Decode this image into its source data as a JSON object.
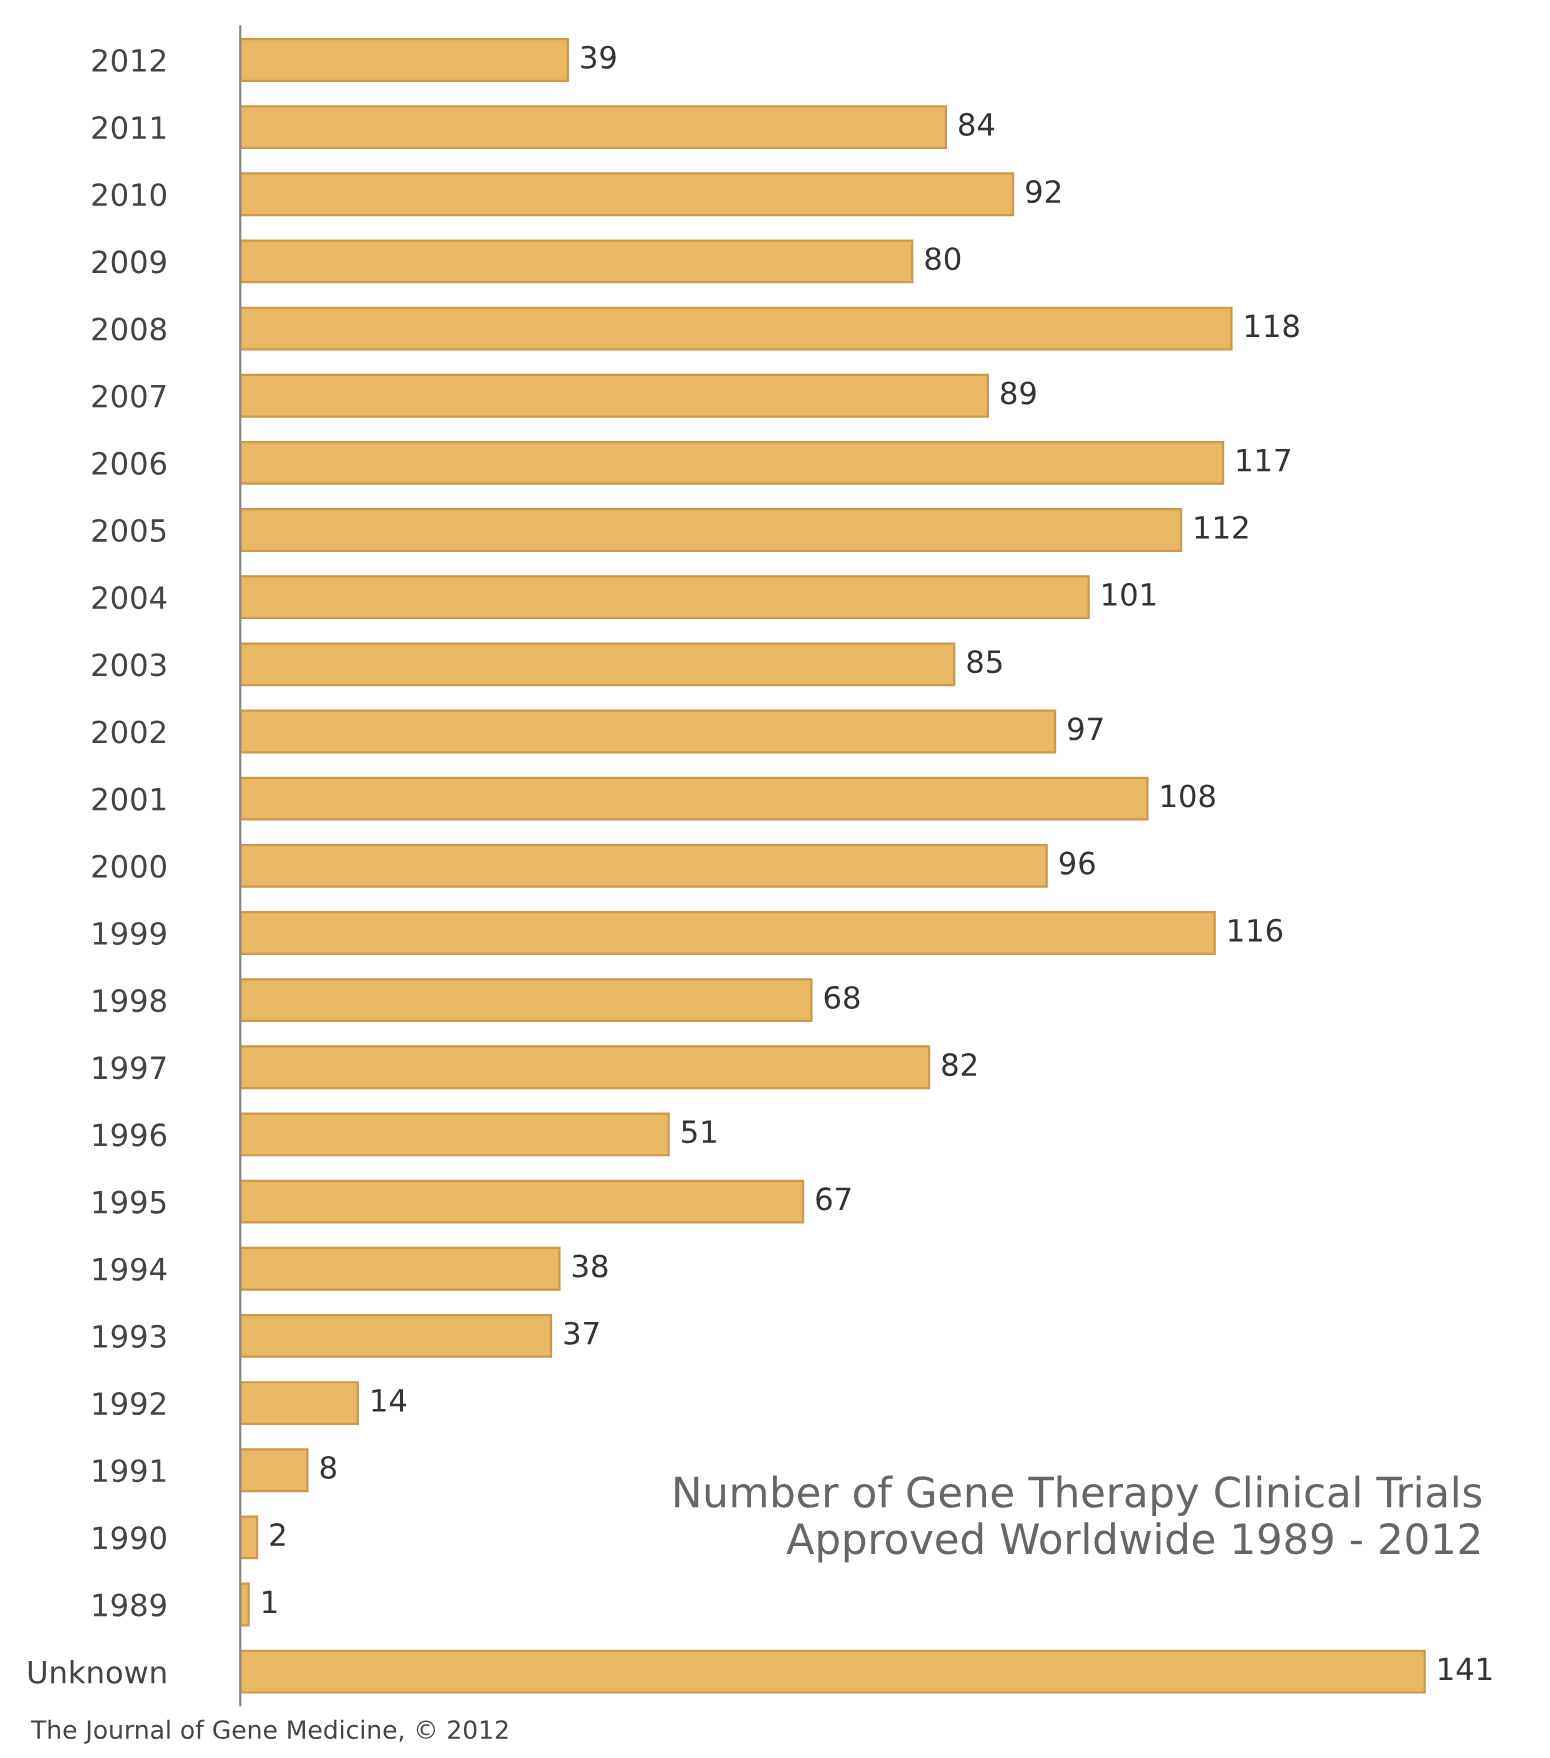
{
  "chart_data": {
    "type": "bar",
    "orientation": "horizontal",
    "title": "Number of Gene Therapy Clinical Trials\nApproved Worldwide 1989 - 2012",
    "categories": [
      "2012",
      "2011",
      "2010",
      "2009",
      "2008",
      "2007",
      "2006",
      "2005",
      "2004",
      "2003",
      "2002",
      "2001",
      "2000",
      "1999",
      "1998",
      "1997",
      "1996",
      "1995",
      "1994",
      "1993",
      "1992",
      "1991",
      "1990",
      "1989",
      "Unknown"
    ],
    "values": [
      39,
      84,
      92,
      80,
      118,
      89,
      117,
      112,
      101,
      85,
      97,
      108,
      96,
      116,
      68,
      82,
      51,
      67,
      38,
      37,
      14,
      8,
      2,
      1,
      141
    ],
    "color": "#e9b865",
    "data_labels": true,
    "grid": false,
    "legend": false,
    "annotations": [
      "The Journal of Gene Medicine, © 2012"
    ]
  }
}
